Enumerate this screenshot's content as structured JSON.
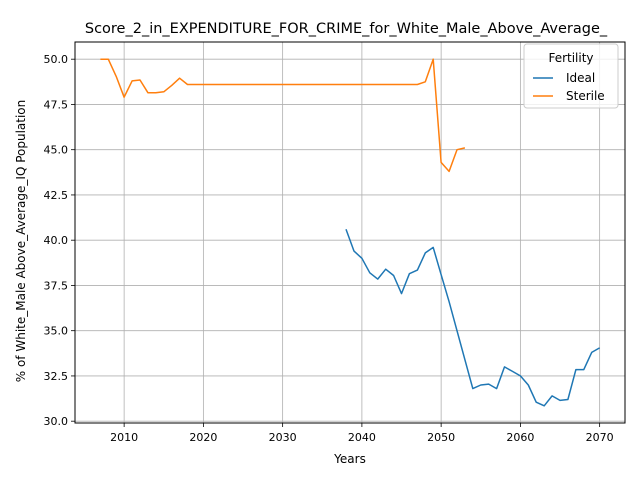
{
  "chart_data": {
    "type": "line",
    "title": "Score_2_in_EXPENDITURE_FOR_CRIME_for_White_Male_Above_Average_",
    "xlabel": "Years",
    "ylabel": "% of White_Male Above_Average_IQ Population",
    "xlim": [
      2003.8,
      2073.2
    ],
    "ylim": [
      29.9,
      50.95
    ],
    "x_ticks": [
      2010,
      2020,
      2030,
      2040,
      2050,
      2060,
      2070
    ],
    "x_tick_labels": [
      "2010",
      "2020",
      "2030",
      "2040",
      "2050",
      "2060",
      "2070"
    ],
    "y_ticks": [
      30.0,
      32.5,
      35.0,
      37.5,
      40.0,
      42.5,
      45.0,
      47.5,
      50.0
    ],
    "y_tick_labels": [
      "30.0",
      "32.5",
      "35.0",
      "37.5",
      "40.0",
      "42.5",
      "45.0",
      "47.5",
      "50.0"
    ],
    "grid": true,
    "legend": {
      "title": "Fertility",
      "placement": "top-right"
    },
    "series": [
      {
        "name": "Ideal",
        "color": "#1f77b4",
        "x": [
          2038,
          2039,
          2040,
          2041,
          2042,
          2043,
          2044,
          2045,
          2046,
          2047,
          2048,
          2049,
          2050,
          2051,
          2052,
          2053,
          2054,
          2055,
          2056,
          2057,
          2058,
          2059,
          2060,
          2061,
          2062,
          2063,
          2064,
          2065,
          2066,
          2067,
          2068,
          2069,
          2070
        ],
        "y": [
          40.6,
          39.4,
          39.0,
          38.2,
          37.85,
          38.4,
          38.05,
          37.05,
          38.15,
          38.35,
          39.3,
          39.6,
          38.1,
          36.6,
          35.0,
          33.4,
          31.8,
          32.0,
          32.05,
          31.8,
          33.0,
          32.75,
          32.5,
          32.0,
          31.05,
          30.85,
          31.4,
          31.15,
          31.2,
          32.85,
          32.85,
          33.8,
          34.05
        ]
      },
      {
        "name": "Sterile",
        "color": "#ff7f0e",
        "x": [
          2007,
          2008,
          2009,
          2010,
          2011,
          2012,
          2013,
          2014,
          2015,
          2016,
          2017,
          2018,
          2019,
          2020,
          2021,
          2022,
          2023,
          2024,
          2025,
          2026,
          2027,
          2028,
          2029,
          2030,
          2031,
          2032,
          2033,
          2034,
          2035,
          2036,
          2037,
          2038,
          2039,
          2040,
          2041,
          2042,
          2043,
          2044,
          2045,
          2046,
          2047,
          2048,
          2049,
          2050,
          2051,
          2052,
          2053
        ],
        "y": [
          50.0,
          50.0,
          49.05,
          47.9,
          48.8,
          48.85,
          48.15,
          48.15,
          48.2,
          48.55,
          48.95,
          48.6,
          48.6,
          48.6,
          48.6,
          48.6,
          48.6,
          48.6,
          48.6,
          48.6,
          48.6,
          48.6,
          48.6,
          48.6,
          48.6,
          48.6,
          48.6,
          48.6,
          48.6,
          48.6,
          48.6,
          48.6,
          48.6,
          48.6,
          48.6,
          48.6,
          48.6,
          48.6,
          48.6,
          48.6,
          48.6,
          48.75,
          50.0,
          44.3,
          43.8,
          45.0,
          45.1
        ]
      }
    ]
  }
}
